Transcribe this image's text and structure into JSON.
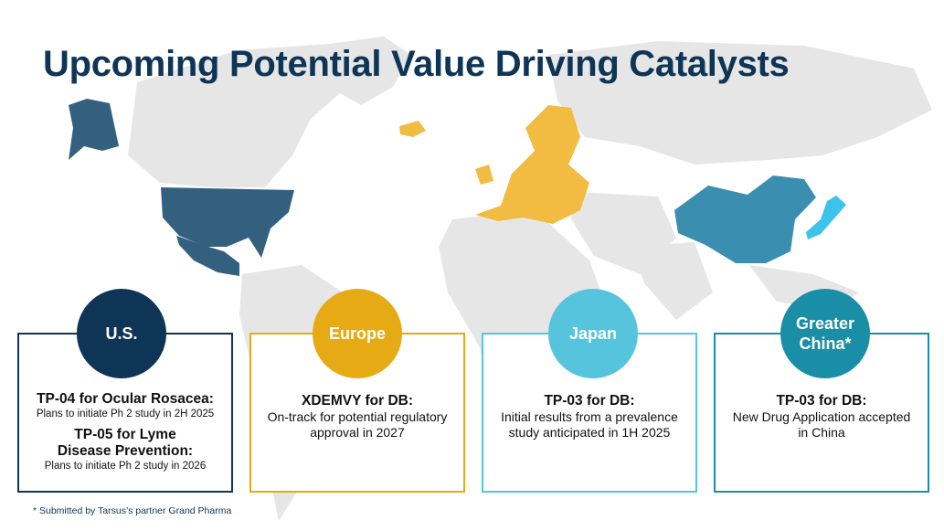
{
  "title": "Upcoming Potential Value Driving Catalysts",
  "colors": {
    "title": "#0e3556",
    "us": "#0e3556",
    "us_map": "#34607f",
    "europe": "#e6ab14",
    "europe_map": "#f2bb42",
    "japan": "#56c4dc",
    "japan_map": "#3bc3ea",
    "china": "#1a8ea7",
    "china_map": "#3a8eb0",
    "land": "#e6e6e6"
  },
  "regions": {
    "us": {
      "label": "U.S.",
      "items": [
        {
          "head": "TP-04 for Ocular Rosacea:",
          "desc": "Plans to initiate Ph 2 study in 2H 2025"
        },
        {
          "head": "TP-05 for Lyme\nDisease Prevention:",
          "desc": "Plans to initiate Ph 2 study in 2026"
        }
      ]
    },
    "europe": {
      "label": "Europe",
      "head": "XDEMVY for DB:",
      "desc": "On-track for potential regulatory\napproval in 2027"
    },
    "japan": {
      "label": "Japan",
      "head": "TP-03 for DB:",
      "desc": "Initial results from a prevalence\nstudy anticipated in 1H 2025"
    },
    "china": {
      "label": "Greater\nChina*",
      "head": "TP-03 for DB:",
      "desc": "New Drug Application accepted\nin China"
    }
  },
  "footnote": "* Submitted by Tarsus’s partner Grand Pharma"
}
